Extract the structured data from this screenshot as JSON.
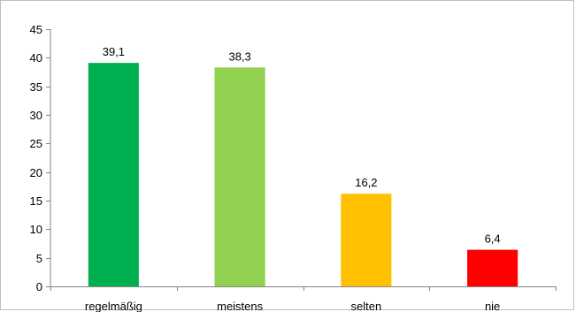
{
  "chart_data": {
    "type": "bar",
    "categories": [
      "regelmäßig",
      "meistens",
      "selten",
      "nie"
    ],
    "values": [
      39.1,
      38.3,
      16.2,
      6.4
    ],
    "data_labels": [
      "39,1",
      "38,3",
      "16,2",
      "6,4"
    ],
    "colors": [
      "#00b050",
      "#92d050",
      "#ffc000",
      "#ff0000"
    ],
    "title": "",
    "xlabel": "",
    "ylabel": "",
    "ylim": [
      0,
      45
    ],
    "yticks": [
      0,
      5,
      10,
      15,
      20,
      25,
      30,
      35,
      40,
      45
    ],
    "grid": false,
    "legend": "none"
  }
}
